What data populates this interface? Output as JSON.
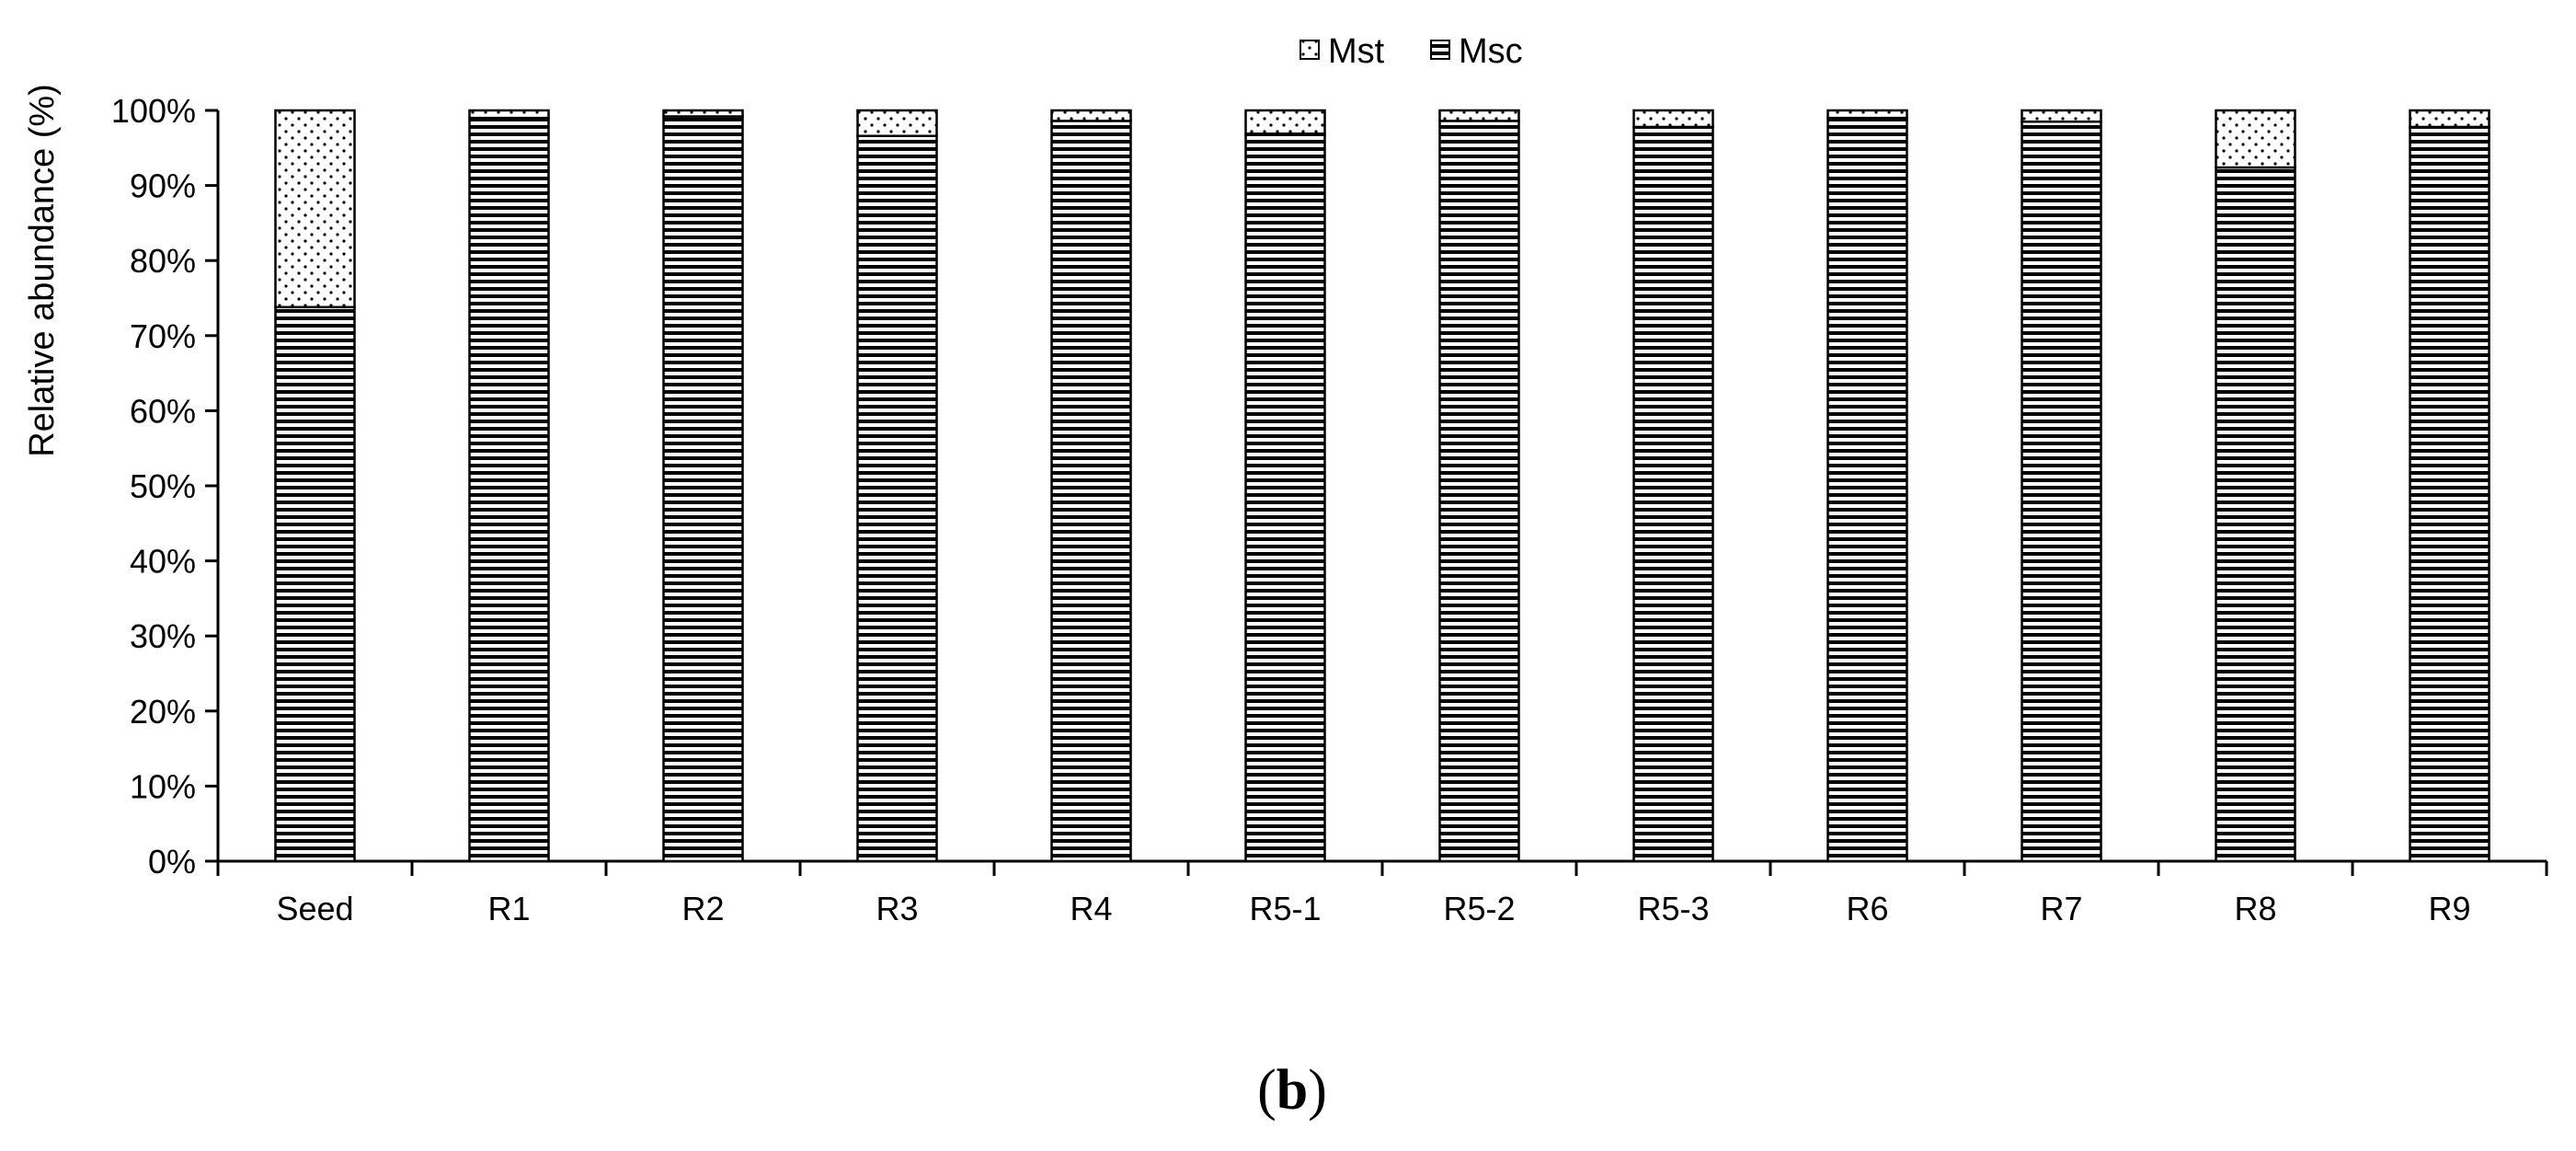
{
  "chart_data": {
    "type": "bar",
    "stacked": true,
    "percent": true,
    "categories": [
      "Seed",
      "R1",
      "R2",
      "R3",
      "R4",
      "R5-1",
      "R5-2",
      "R5-3",
      "R6",
      "R7",
      "R8",
      "R9"
    ],
    "series": [
      {
        "name": "Msc",
        "pattern": "horizontal-lines",
        "values": [
          73.8,
          99.0,
          99.2,
          96.6,
          98.6,
          96.9,
          98.6,
          97.8,
          99.0,
          98.5,
          92.4,
          97.8
        ]
      },
      {
        "name": "Mst",
        "pattern": "dots",
        "values": [
          26.2,
          1.0,
          0.8,
          3.4,
          1.4,
          3.1,
          1.4,
          2.2,
          1.0,
          1.5,
          7.6,
          2.2
        ]
      }
    ],
    "legend_order": [
      "Mst",
      "Msc"
    ],
    "legend_position": "top-center",
    "ylabel": "Relative abundance (%)",
    "ylim": [
      0,
      100
    ],
    "yticks": [
      "0%",
      "10%",
      "20%",
      "30%",
      "40%",
      "50%",
      "60%",
      "70%",
      "80%",
      "90%",
      "100%"
    ],
    "grid": false
  },
  "panel_label": {
    "open": "(",
    "letter": "b",
    "close": ")"
  }
}
